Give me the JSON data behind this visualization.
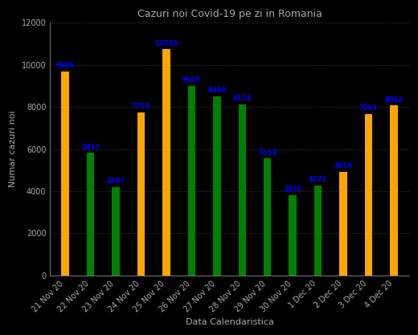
{
  "title": "Cazuri noi Covid-19 pe zi in Romania",
  "xlabel": "Data Calendaristica",
  "ylabel": "Numar cazuri noi",
  "categories": [
    "21 Nov 20",
    "22 Nov 20",
    "23 Nov 20",
    "24 Nov 20",
    "25 Nov 20",
    "26 Nov 20",
    "27 Nov 20",
    "28 Nov 20",
    "29 Nov 20",
    "30 Nov 20",
    "1 Dec 20",
    "2 Dec 20",
    "3 Dec 20",
    "4 Dec 20"
  ],
  "values": [
    9686,
    5817,
    4207,
    7753,
    10730,
    9005,
    8499,
    8134,
    5554,
    3826,
    4272,
    4916,
    7661,
    8062
  ],
  "colors": [
    "#FFA500",
    "#008000",
    "#008000",
    "#FFA500",
    "#FFA500",
    "#008000",
    "#008000",
    "#008000",
    "#008000",
    "#008000",
    "#008000",
    "#FFA500",
    "#FFA500",
    "#FFA500"
  ],
  "ylim": [
    0,
    12000
  ],
  "yticks": [
    0,
    2000,
    4000,
    6000,
    8000,
    10000,
    12000
  ],
  "background_color": "#000000",
  "text_color": "#0000FF",
  "grid_color": "#404040",
  "title_color": "#AAAAAA",
  "label_color": "#AAAAAA",
  "tick_color": "#AAAAAA",
  "bar_width": 0.3,
  "title_fontsize": 9,
  "label_fontsize": 8,
  "tick_fontsize": 7,
  "value_fontsize": 6
}
